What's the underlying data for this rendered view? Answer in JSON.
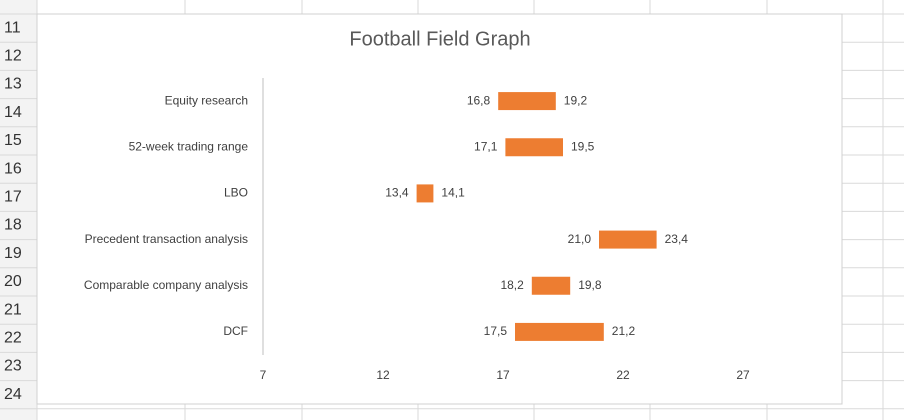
{
  "spreadsheet": {
    "row_numbers": [
      "11",
      "12",
      "13",
      "14",
      "15",
      "16",
      "17",
      "18",
      "19",
      "20",
      "21",
      "22",
      "23",
      "24"
    ]
  },
  "chart_data": {
    "type": "floating-bar",
    "title": "Football Field Graph",
    "categories": [
      "Equity research",
      "52-week trading range",
      "LBO",
      "Precedent transaction analysis",
      "Comparable company analysis",
      "DCF"
    ],
    "low": [
      16.8,
      17.1,
      13.4,
      21.0,
      18.2,
      17.5
    ],
    "low_labels": [
      "16,8",
      "17,1",
      "13,4",
      "21,0",
      "18,2",
      "17,5"
    ],
    "high": [
      19.2,
      19.5,
      14.1,
      23.4,
      19.8,
      21.2
    ],
    "high_labels": [
      "19,2",
      "19,5",
      "14,1",
      "23,4",
      "19,8",
      "21,2"
    ],
    "color": "#ed7d31",
    "xlim": [
      7,
      27
    ],
    "xticks": [
      7,
      12,
      17,
      22,
      27
    ]
  }
}
